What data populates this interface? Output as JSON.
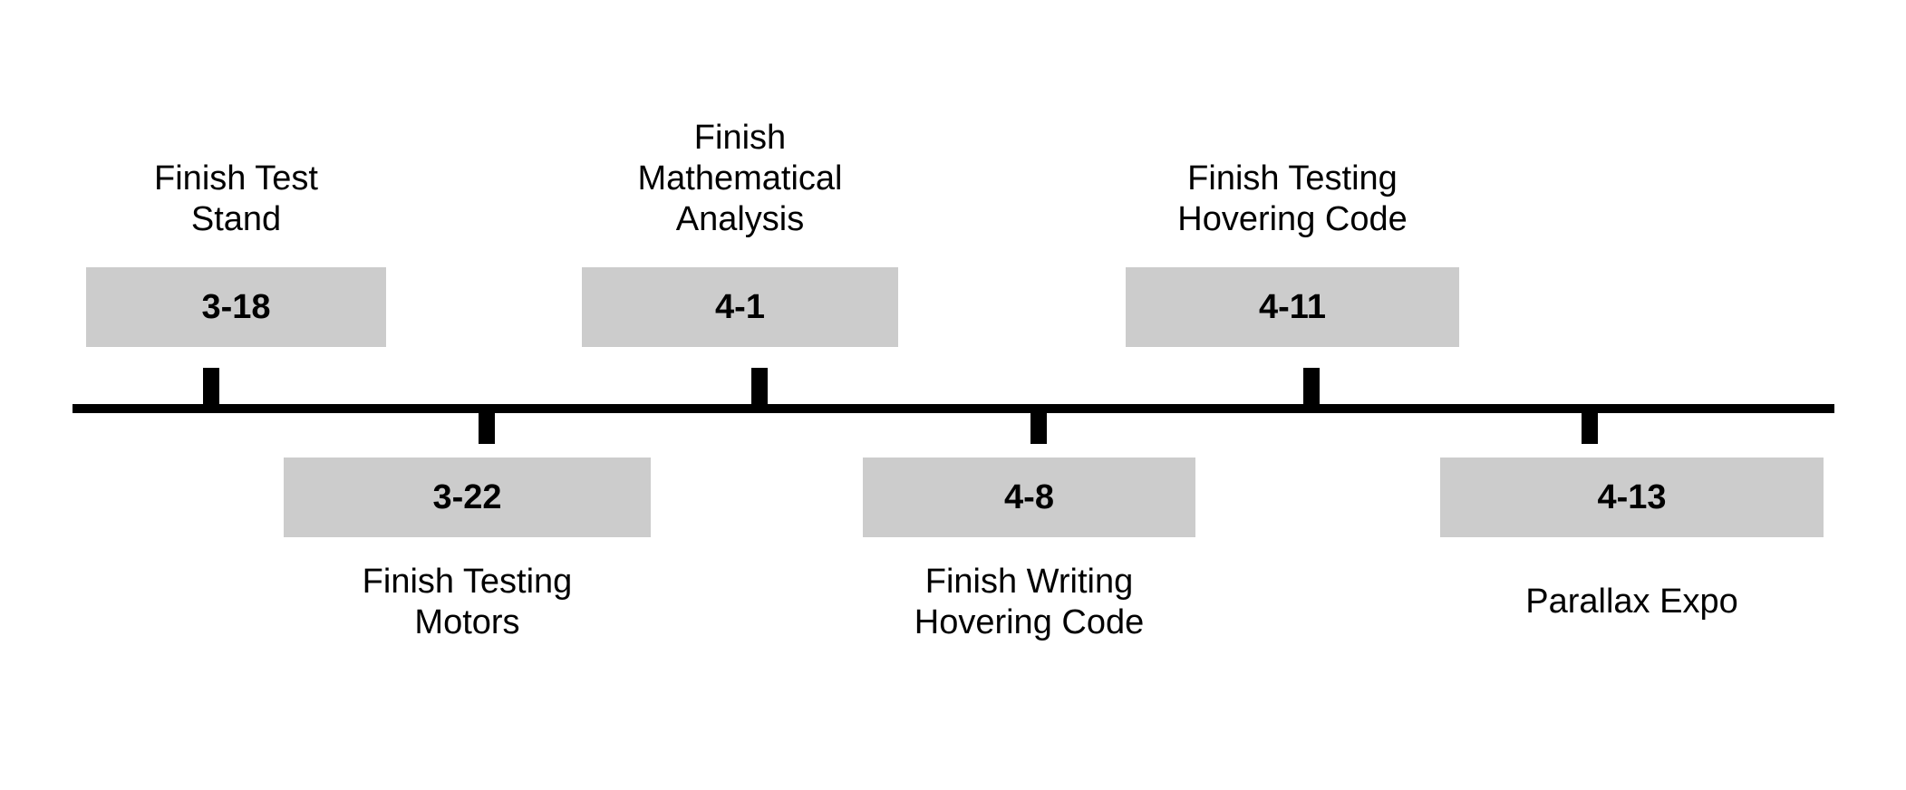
{
  "milestones": [
    {
      "date": "3-18",
      "caption": "Finish Test\nStand"
    },
    {
      "date": "3-22",
      "caption": "Finish Testing\nMotors"
    },
    {
      "date": "4-1",
      "caption": "Finish\nMathematical\nAnalysis"
    },
    {
      "date": "4-8",
      "caption": "Finish Writing\nHovering Code"
    },
    {
      "date": "4-11",
      "caption": "Finish Testing\nHovering Code"
    },
    {
      "date": "4-13",
      "caption": "Parallax Expo"
    }
  ],
  "colors": {
    "box_fill": "#cccccc",
    "line": "#000000"
  }
}
